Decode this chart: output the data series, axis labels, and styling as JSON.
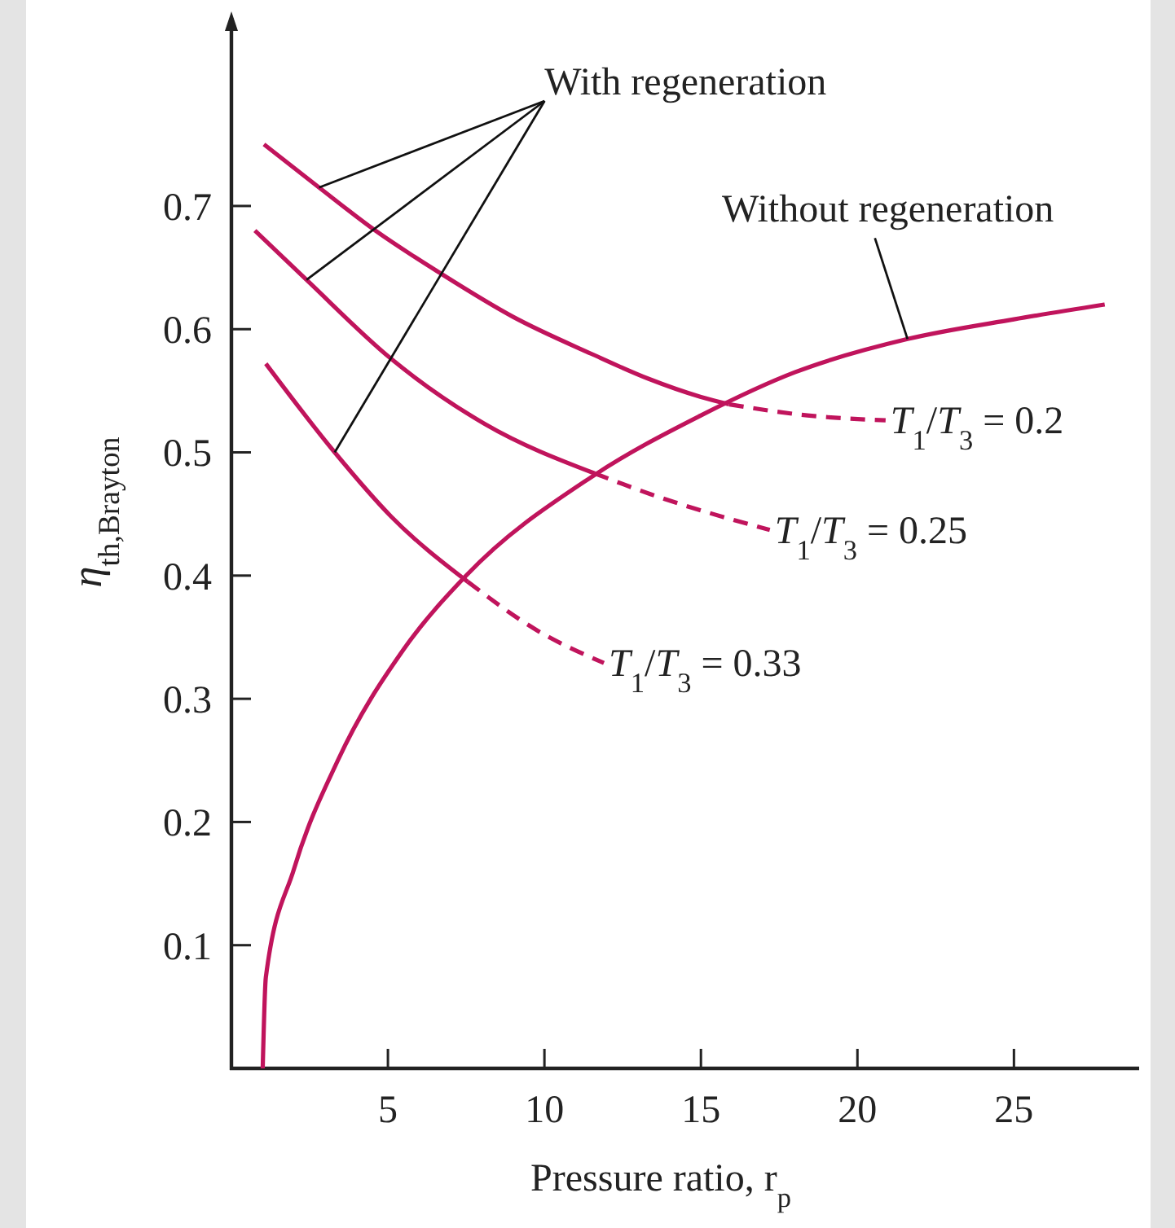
{
  "chart_data": {
    "type": "line",
    "xlabel": "Pressure ratio, r$_{p}$",
    "ylabel": "η$_{th,Brayton}$",
    "xlim": [
      0,
      29
    ],
    "ylim": [
      0,
      0.85
    ],
    "xticks": [
      5,
      10,
      15,
      20,
      25
    ],
    "yticks": [
      0.1,
      0.2,
      0.3,
      0.4,
      0.5,
      0.6,
      0.7
    ],
    "grid": false,
    "marker": "none",
    "annotations": [
      {
        "text": "With regeneration",
        "x": 2.8,
        "y": 0.715
      },
      {
        "text": "Without regeneration",
        "x": 21.6,
        "y": 0.592
      }
    ],
    "series": [
      {
        "color": "#c0145c",
        "line_style": "solid",
        "x": [
          1,
          1.1,
          2,
          3.4,
          5.5,
          7.5,
          11.5,
          15,
          18,
          21.6,
          25,
          27.9
        ],
        "values": [
          0,
          0.074,
          0.162,
          0.25,
          0.34,
          0.4,
          0.48,
          0.53,
          0.565,
          0.592,
          0.608,
          0.62
        ]
      },
      {
        "color": "#c0145c",
        "line_style": "solid",
        "x": [
          1.04,
          2.8,
          4.6,
          6.7,
          9,
          11.5,
          13.3,
          15,
          15.9
        ],
        "values": [
          0.75,
          0.715,
          0.68,
          0.645,
          0.61,
          0.58,
          0.56,
          0.545,
          0.539
        ]
      },
      {
        "name": "T$_{1}$/T$_{3}$ = 0.2",
        "color": "#c0145c",
        "line_style": "dashed",
        "x": [
          15.9,
          18.4,
          20.9
        ],
        "values": [
          0.539,
          0.53,
          0.526
        ]
      },
      {
        "color": "#c0145c",
        "line_style": "solid",
        "x": [
          0.75,
          2.4,
          5.1,
          8.1,
          11.6
        ],
        "values": [
          0.68,
          0.64,
          0.576,
          0.523,
          0.483
        ]
      },
      {
        "name": "T$_{1}$/T$_{3}$ = 0.25",
        "color": "#c0145c",
        "line_style": "dashed",
        "x": [
          11.6,
          13.4,
          17.2
        ],
        "values": [
          0.483,
          0.466,
          0.437
        ]
      },
      {
        "color": "#c0145c",
        "line_style": "solid",
        "x": [
          1.1,
          3.3,
          5.1,
          7.55
        ],
        "values": [
          0.572,
          0.5,
          0.448,
          0.395
        ]
      },
      {
        "name": "T$_{1}$/T$_{3}$ = 0.33",
        "color": "#c0145c",
        "line_style": "dashed",
        "x": [
          7.55,
          9.8,
          11.9
        ],
        "values": [
          0.395,
          0.355,
          0.329
        ]
      }
    ]
  }
}
